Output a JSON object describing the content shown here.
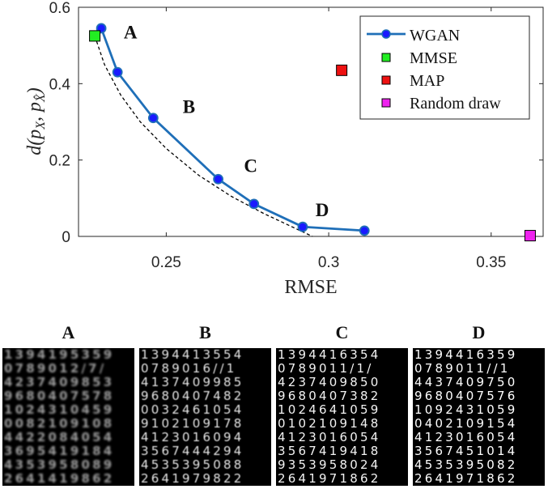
{
  "chart_data": {
    "type": "line",
    "xlabel": "RMSE",
    "ylabel": "d(p_X, p_X̂)",
    "xlim": [
      0.223,
      0.366
    ],
    "ylim": [
      0,
      0.6
    ],
    "xticks": [
      0.25,
      0.3,
      0.35
    ],
    "xtick_labels": [
      "0.25",
      "0.3",
      "0.35"
    ],
    "yticks": [
      0,
      0.2,
      0.4,
      0.6
    ],
    "ytick_labels": [
      "0",
      "0.2",
      "0.4",
      "0.6"
    ],
    "grid": false,
    "legend_position": "top-right",
    "series": [
      {
        "name": "WGAN",
        "type": "line",
        "color": "#1f6fb8",
        "marker_color": "#1a1aff",
        "x": [
          0.23,
          0.235,
          0.246,
          0.266,
          0.277,
          0.292,
          0.311
        ],
        "y": [
          0.545,
          0.43,
          0.31,
          0.15,
          0.085,
          0.025,
          0.015
        ]
      },
      {
        "name": "MMSE",
        "type": "point",
        "color": "#22ee22",
        "x": [
          0.228
        ],
        "y": [
          0.525
        ]
      },
      {
        "name": "MAP",
        "type": "point",
        "color": "#ee1111",
        "x": [
          0.304
        ],
        "y": [
          0.435
        ]
      },
      {
        "name": "Random draw",
        "type": "point",
        "color": "#ee22ee",
        "x": [
          0.362
        ],
        "y": [
          0.002
        ]
      }
    ],
    "bound_curve": {
      "style": "dashed",
      "color": "#000000",
      "x": [
        0.228,
        0.231,
        0.236,
        0.242,
        0.25,
        0.26,
        0.27,
        0.28,
        0.288,
        0.295
      ],
      "y": [
        0.525,
        0.45,
        0.37,
        0.3,
        0.23,
        0.16,
        0.105,
        0.06,
        0.028,
        0.0
      ]
    },
    "annotations": [
      {
        "text": "A",
        "x": 0.239,
        "y": 0.535
      },
      {
        "text": "B",
        "x": 0.257,
        "y": 0.34
      },
      {
        "text": "C",
        "x": 0.276,
        "y": 0.185
      },
      {
        "text": "D",
        "x": 0.298,
        "y": 0.07
      }
    ]
  },
  "panels": [
    {
      "label": "A",
      "rows": [
        "1394195359",
        "0789012/7/",
        "4237409853",
        "9680407578",
        "1024310459",
        "0082109108",
        "4422084054",
        "3695419184",
        "4353958089",
        "2641419862"
      ]
    },
    {
      "label": "B",
      "rows": [
        "1394413554",
        "0789016//1",
        "4137409985",
        "9680407482",
        "0032461054",
        "9102109178",
        "4123016094",
        "3567444294",
        "4535395088",
        "2641979822"
      ]
    },
    {
      "label": "C",
      "rows": [
        "1394416354",
        "0789011/1/",
        "4237409850",
        "9680407382",
        "1024641059",
        "0102109148",
        "4123016054",
        "3567419418",
        "9353958024",
        "2641971862"
      ]
    },
    {
      "label": "D",
      "rows": [
        "1394416359",
        "0789011//1",
        "4437409750",
        "9680407576",
        "1092431059",
        "0402109154",
        "4123016054",
        "3567451014",
        "4535395082",
        "2641971862"
      ]
    }
  ]
}
